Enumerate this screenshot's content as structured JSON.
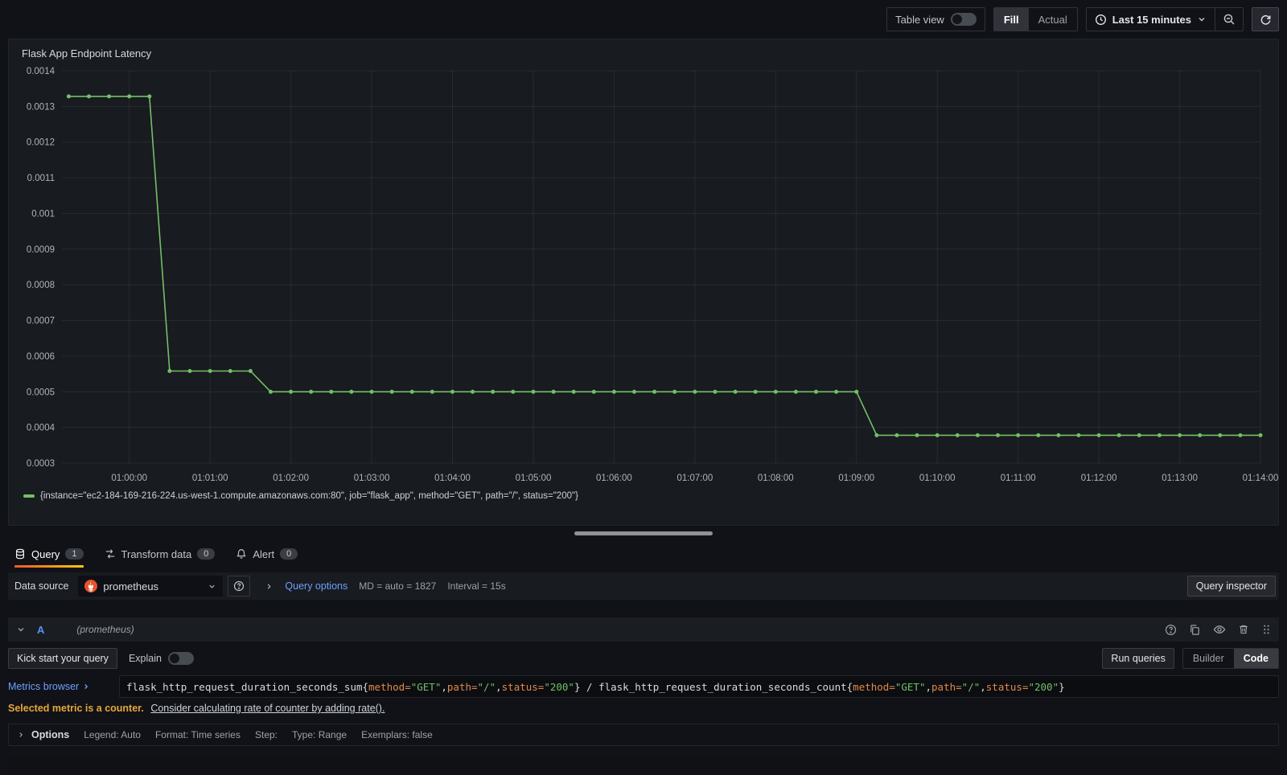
{
  "toolbar": {
    "table_view_label": "Table view",
    "fill_label": "Fill",
    "actual_label": "Actual",
    "time_range_label": "Last 15 minutes"
  },
  "panel": {
    "title": "Flask App Endpoint Latency",
    "legend": "{instance=\"ec2-184-169-216-224.us-west-1.compute.amazonaws.com:80\", job=\"flask_app\", method=\"GET\", path=\"/\", status=\"200\"}"
  },
  "chart_data": {
    "type": "line",
    "title": "Flask App Endpoint Latency",
    "grid": true,
    "legend_position": "bottom",
    "line_color": "#73bf69",
    "point_radius": 2.5,
    "ylim": [
      0.0003,
      0.0014
    ],
    "x_range": [
      "00:59:10",
      "01:14:00"
    ],
    "y_ticks": [
      {
        "v": 0.0014,
        "label": "0.0014"
      },
      {
        "v": 0.0013,
        "label": "0.0013"
      },
      {
        "v": 0.0012,
        "label": "0.0012"
      },
      {
        "v": 0.0011,
        "label": "0.0011"
      },
      {
        "v": 0.001,
        "label": "0.001"
      },
      {
        "v": 0.0009,
        "label": "0.0009"
      },
      {
        "v": 0.0008,
        "label": "0.0008"
      },
      {
        "v": 0.0007,
        "label": "0.0007"
      },
      {
        "v": 0.0006,
        "label": "0.0006"
      },
      {
        "v": 0.0005,
        "label": "0.0005"
      },
      {
        "v": 0.0004,
        "label": "0.0004"
      },
      {
        "v": 0.0003,
        "label": "0.0003"
      }
    ],
    "x_ticks": [
      "01:00:00",
      "01:01:00",
      "01:02:00",
      "01:03:00",
      "01:04:00",
      "01:05:00",
      "01:06:00",
      "01:07:00",
      "01:08:00",
      "01:09:00",
      "01:10:00",
      "01:11:00",
      "01:12:00",
      "01:13:00",
      "01:14:00"
    ],
    "series": [
      {
        "name": "{instance=\"ec2-184-169-216-224.us-west-1.compute.amazonaws.com:80\", job=\"flask_app\", method=\"GET\", path=\"/\", status=\"200\"}",
        "color": "#73bf69",
        "points": [
          [
            "00:59:15",
            0.001328
          ],
          [
            "00:59:30",
            0.001328
          ],
          [
            "00:59:45",
            0.001328
          ],
          [
            "01:00:00",
            0.001328
          ],
          [
            "01:00:15",
            0.001328
          ],
          [
            "01:00:30",
            0.000558
          ],
          [
            "01:00:45",
            0.000558
          ],
          [
            "01:01:00",
            0.000558
          ],
          [
            "01:01:15",
            0.000558
          ],
          [
            "01:01:30",
            0.000558
          ],
          [
            "01:01:45",
            0.0005
          ],
          [
            "01:02:00",
            0.0005
          ],
          [
            "01:02:15",
            0.0005
          ],
          [
            "01:02:30",
            0.0005
          ],
          [
            "01:02:45",
            0.0005
          ],
          [
            "01:03:00",
            0.0005
          ],
          [
            "01:03:15",
            0.0005
          ],
          [
            "01:03:30",
            0.0005
          ],
          [
            "01:03:45",
            0.0005
          ],
          [
            "01:04:00",
            0.0005
          ],
          [
            "01:04:15",
            0.0005
          ],
          [
            "01:04:30",
            0.0005
          ],
          [
            "01:04:45",
            0.0005
          ],
          [
            "01:05:00",
            0.0005
          ],
          [
            "01:05:15",
            0.0005
          ],
          [
            "01:05:30",
            0.0005
          ],
          [
            "01:05:45",
            0.0005
          ],
          [
            "01:06:00",
            0.0005
          ],
          [
            "01:06:15",
            0.0005
          ],
          [
            "01:06:30",
            0.0005
          ],
          [
            "01:06:45",
            0.0005
          ],
          [
            "01:07:00",
            0.0005
          ],
          [
            "01:07:15",
            0.0005
          ],
          [
            "01:07:30",
            0.0005
          ],
          [
            "01:07:45",
            0.0005
          ],
          [
            "01:08:00",
            0.0005
          ],
          [
            "01:08:15",
            0.0005
          ],
          [
            "01:08:30",
            0.0005
          ],
          [
            "01:08:45",
            0.0005
          ],
          [
            "01:09:00",
            0.0005
          ],
          [
            "01:09:15",
            0.000378
          ],
          [
            "01:09:30",
            0.000378
          ],
          [
            "01:09:45",
            0.000378
          ],
          [
            "01:10:00",
            0.000378
          ],
          [
            "01:10:15",
            0.000378
          ],
          [
            "01:10:30",
            0.000378
          ],
          [
            "01:10:45",
            0.000378
          ],
          [
            "01:11:00",
            0.000378
          ],
          [
            "01:11:15",
            0.000378
          ],
          [
            "01:11:30",
            0.000378
          ],
          [
            "01:11:45",
            0.000378
          ],
          [
            "01:12:00",
            0.000378
          ],
          [
            "01:12:15",
            0.000378
          ],
          [
            "01:12:30",
            0.000378
          ],
          [
            "01:12:45",
            0.000378
          ],
          [
            "01:13:00",
            0.000378
          ],
          [
            "01:13:15",
            0.000378
          ],
          [
            "01:13:30",
            0.000378
          ],
          [
            "01:13:45",
            0.000378
          ],
          [
            "01:14:00",
            0.000378
          ]
        ]
      }
    ]
  },
  "tabs": [
    {
      "label": "Query",
      "badge": "1",
      "icon": "database-icon",
      "active": true
    },
    {
      "label": "Transform data",
      "badge": "0",
      "icon": "transform-icon",
      "active": false
    },
    {
      "label": "Alert",
      "badge": "0",
      "icon": "bell-icon",
      "active": false
    }
  ],
  "datasource_bar": {
    "label": "Data source",
    "selected": "prometheus",
    "query_options_label": "Query options",
    "md_stat": "MD = auto = 1827",
    "interval_stat": "Interval = 15s",
    "inspector_label": "Query inspector"
  },
  "query_row": {
    "ref_id": "A",
    "ds_hint": "(prometheus)",
    "action_icons": [
      "help-circle-icon",
      "duplicate-icon",
      "eye-icon",
      "trash-icon",
      "grip-icon"
    ]
  },
  "editor": {
    "kick_start_label": "Kick start your query",
    "explain_label": "Explain",
    "run_queries_label": "Run queries",
    "builder_label": "Builder",
    "code_label": "Code",
    "metrics_browser_label": "Metrics browser",
    "query_string": "flask_http_request_duration_seconds_sum{method=\"GET\",path=\"/\",status=\"200\"} / flask_http_request_duration_seconds_count{method=\"GET\",path=\"/\",status=\"200\"}",
    "query_tokens": [
      {
        "text": "flask_http_request_duration_seconds_sum",
        "type": "metric"
      },
      {
        "text": "{",
        "type": "punct"
      },
      {
        "text": "method",
        "type": "label"
      },
      {
        "text": "=",
        "type": "label"
      },
      {
        "text": "\"GET\"",
        "type": "string"
      },
      {
        "text": ",",
        "type": "punct"
      },
      {
        "text": "path",
        "type": "label"
      },
      {
        "text": "=",
        "type": "label"
      },
      {
        "text": "\"/\"",
        "type": "string"
      },
      {
        "text": ",",
        "type": "punct"
      },
      {
        "text": "status",
        "type": "label"
      },
      {
        "text": "=",
        "type": "label"
      },
      {
        "text": "\"200\"",
        "type": "string"
      },
      {
        "text": "}",
        "type": "punct"
      },
      {
        "text": " / ",
        "type": "operator"
      },
      {
        "text": "flask_http_request_duration_seconds_count",
        "type": "metric"
      },
      {
        "text": "{",
        "type": "punct"
      },
      {
        "text": "method",
        "type": "label"
      },
      {
        "text": "=",
        "type": "label"
      },
      {
        "text": "\"GET\"",
        "type": "string"
      },
      {
        "text": ",",
        "type": "punct"
      },
      {
        "text": "path",
        "type": "label"
      },
      {
        "text": "=",
        "type": "label"
      },
      {
        "text": "\"/\"",
        "type": "string"
      },
      {
        "text": ",",
        "type": "punct"
      },
      {
        "text": "status",
        "type": "label"
      },
      {
        "text": "=",
        "type": "label"
      },
      {
        "text": "\"200\"",
        "type": "string"
      },
      {
        "text": "}",
        "type": "punct"
      }
    ],
    "hint_strong": "Selected metric is a counter.",
    "hint_link": "Consider calculating rate of counter by adding rate().",
    "options_title": "Options",
    "options_items": [
      "Legend: Auto",
      "Format: Time series",
      "Step:",
      "Type: Range",
      "Exemplars: false"
    ]
  },
  "colors": {
    "accent_orange": "#ff780a",
    "series_green": "#73bf69",
    "link_blue": "#6e9fff",
    "ref_id_blue": "#5794f2",
    "warning_amber": "#e5a73c",
    "prometheus_orange": "#e6522c"
  }
}
